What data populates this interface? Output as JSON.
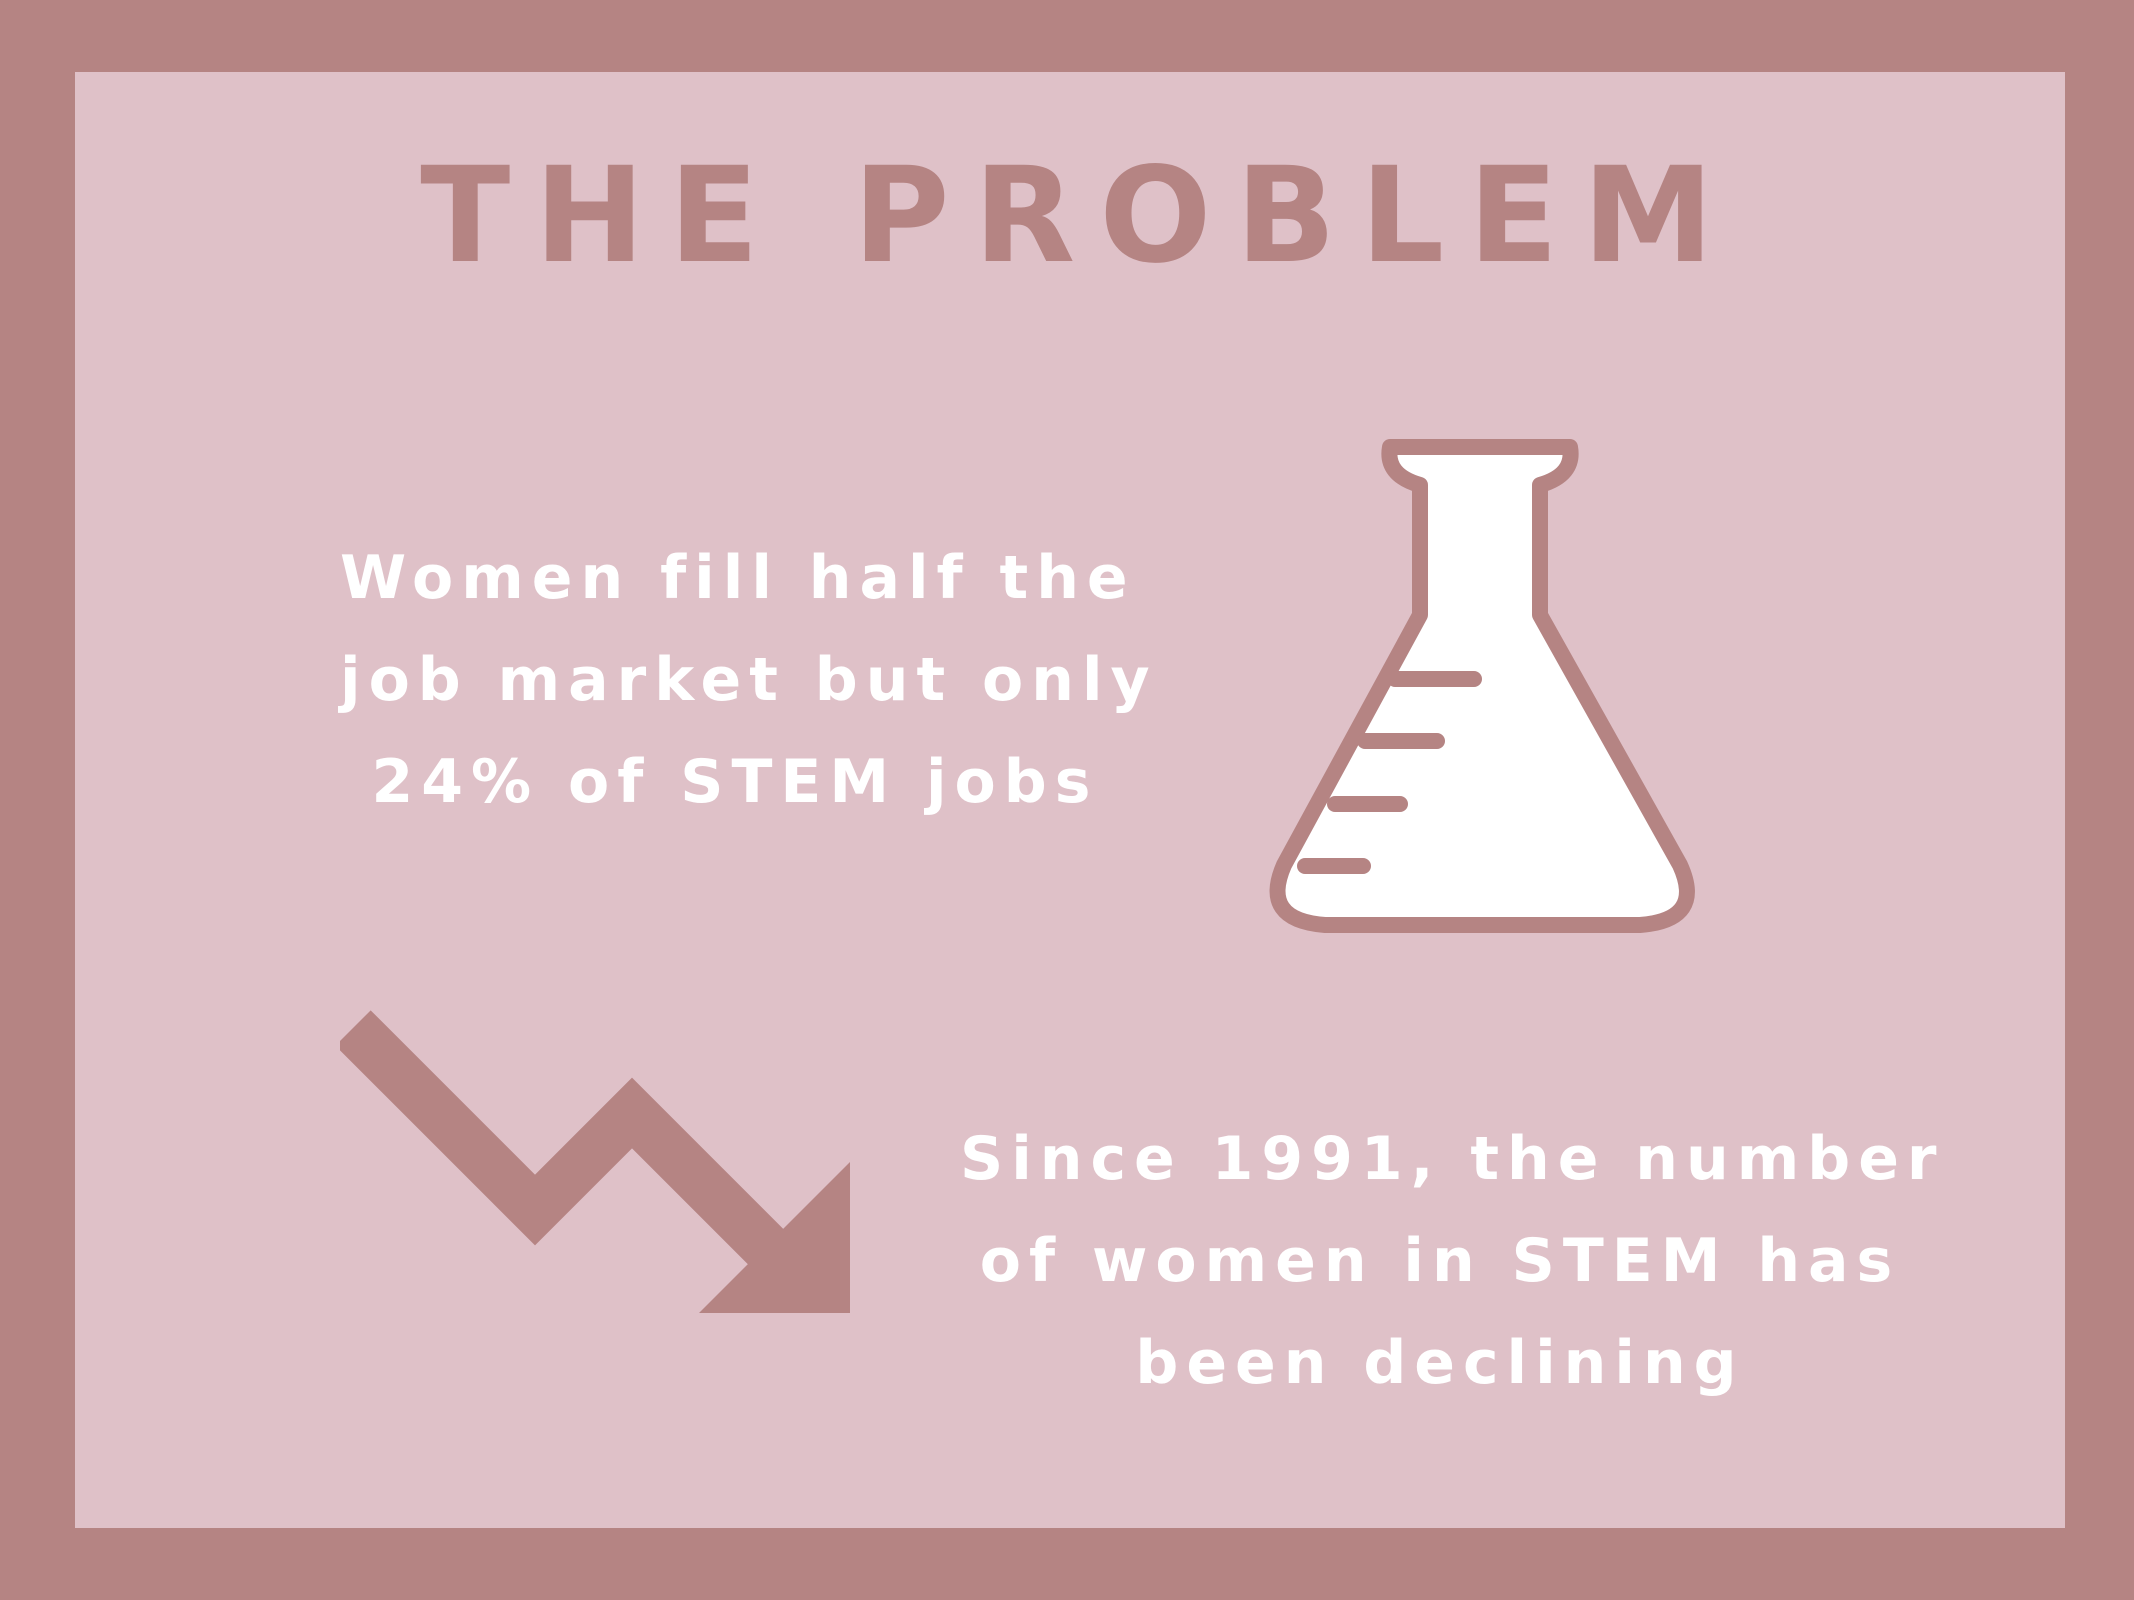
{
  "title": "THE PROBLEM",
  "stat_1": {
    "lines": [
      "Women fill half the",
      "job market but only",
      "24% of STEM jobs"
    ]
  },
  "stat_2": {
    "lines": [
      "Since 1991, the number",
      "of women in STEM has",
      "been declining"
    ]
  },
  "icons": {
    "flask": "flask-icon",
    "trend": "down-trend-arrow-icon"
  },
  "colors": {
    "border": "#b58483",
    "background": "#dfc1c8",
    "text_light": "#ffffff",
    "accent": "#b58483"
  }
}
